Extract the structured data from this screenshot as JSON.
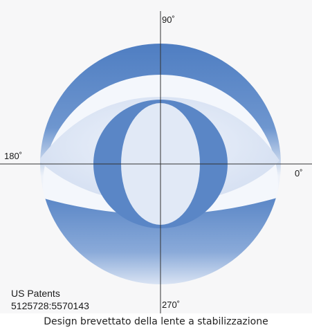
{
  "angles": {
    "top": "90˚",
    "left": "180˚",
    "right": "0˚",
    "bottom": "270˚"
  },
  "patents": {
    "line1": "US Patents",
    "line2": "5125728:5570143"
  },
  "caption": "Design brevettato della lente a stabilizzazione",
  "colors": {
    "lens_blue": "#5a86c6",
    "lens_light": "#dde6f4",
    "axis": "#333333",
    "background": "#f7f7f8"
  }
}
